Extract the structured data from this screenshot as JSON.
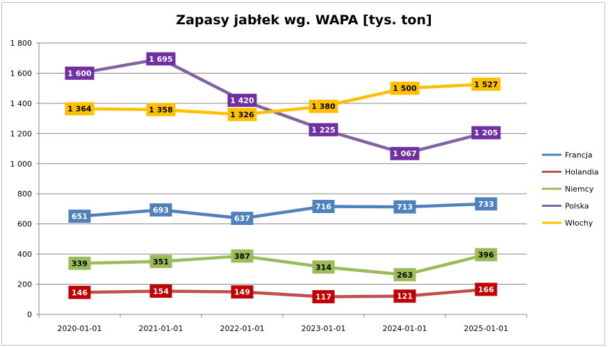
{
  "chart_data": {
    "type": "line",
    "title": "Zapasy jabłek wg. WAPA [tys. ton]",
    "xlabel": "",
    "ylabel": "",
    "x": [
      "2020-01-01",
      "2021-01-01",
      "2022-01-01",
      "2023-01-01",
      "2024-01-01",
      "2025-01-01"
    ],
    "ylim": [
      0,
      1800
    ],
    "yticks": [
      0,
      200,
      400,
      600,
      800,
      1000,
      1200,
      1400,
      1600,
      1800
    ],
    "ytick_labels": [
      "0",
      "200",
      "400",
      "600",
      "800",
      "1 000",
      "1 200",
      "1 400",
      "1 600",
      "1 800"
    ],
    "grid": true,
    "legend_position": "right",
    "series": [
      {
        "name": "Francja",
        "color": "#4f81bd",
        "label_text_color": "#ffffff",
        "values": [
          651,
          693,
          637,
          716,
          713,
          733
        ],
        "labels": [
          "651",
          "693",
          "637",
          "716",
          "713",
          "733"
        ]
      },
      {
        "name": "Holandia",
        "color": "#c0504d",
        "label_bg": "#c00000",
        "label_text_color": "#ffffff",
        "values": [
          146,
          154,
          149,
          117,
          121,
          166
        ],
        "labels": [
          "146",
          "154",
          "149",
          "117",
          "121",
          "166"
        ]
      },
      {
        "name": "Niemcy",
        "color": "#9bbb59",
        "label_text_color": "#000000",
        "values": [
          339,
          351,
          387,
          314,
          263,
          396
        ],
        "labels": [
          "339",
          "351",
          "387",
          "314",
          "263",
          "396"
        ]
      },
      {
        "name": "Polska",
        "color": "#8064a2",
        "label_bg": "#7030a0",
        "label_text_color": "#ffffff",
        "values": [
          1600,
          1695,
          1420,
          1225,
          1067,
          1205
        ],
        "labels": [
          "1 600",
          "1 695",
          "1 420",
          "1 225",
          "1 067",
          "1 205"
        ]
      },
      {
        "name": "Włochy",
        "color": "#ffc000",
        "label_text_color": "#000000",
        "values": [
          1364,
          1358,
          1326,
          1380,
          1500,
          1527
        ],
        "labels": [
          "1 364",
          "1 358",
          "1 326",
          "1 380",
          "1 500",
          "1 527"
        ]
      }
    ]
  }
}
